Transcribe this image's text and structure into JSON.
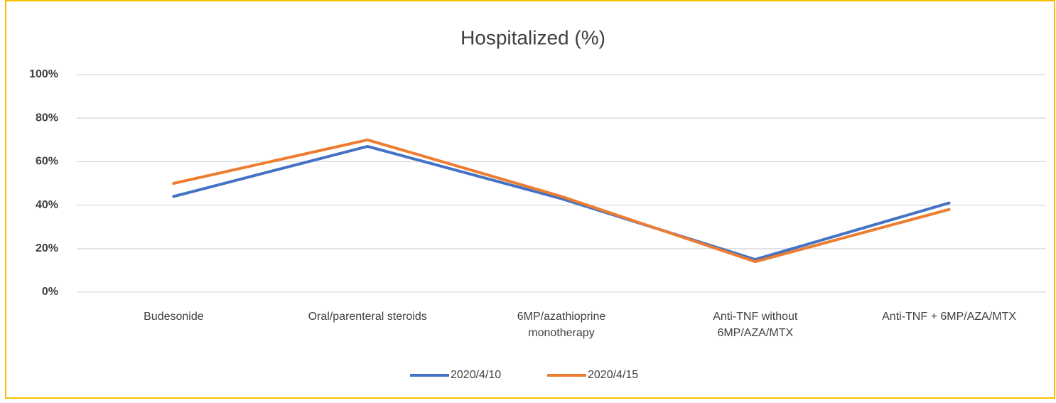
{
  "chart_data": {
    "type": "line",
    "title": "Hospitalized (%)",
    "categories": [
      "Budesonide",
      "Oral/parenteral steroids",
      "6MP/azathioprine monotherapy",
      "Anti-TNF without 6MP/AZA/MTX",
      "Anti-TNF + 6MP/AZA/MTX"
    ],
    "series": [
      {
        "name": "2020/4/10",
        "color": "#4472c4",
        "values": [
          44,
          67,
          43,
          15,
          41
        ]
      },
      {
        "name": "2020/4/15",
        "color": "#ed7d31",
        "values": [
          50,
          70,
          44,
          14,
          38
        ]
      }
    ],
    "ylim": [
      0,
      100
    ],
    "yticks": [
      {
        "value": 0,
        "label": "0%"
      },
      {
        "value": 20,
        "label": "20%"
      },
      {
        "value": 40,
        "label": "40%"
      },
      {
        "value": 60,
        "label": "60%"
      },
      {
        "value": 80,
        "label": "80%"
      },
      {
        "value": 100,
        "label": "100%"
      }
    ],
    "grid": true,
    "legend": "bottom"
  }
}
